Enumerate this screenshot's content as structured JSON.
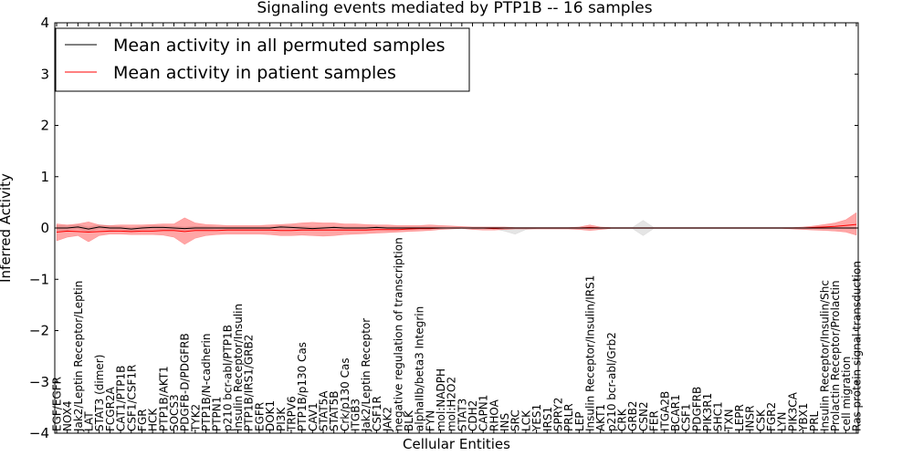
{
  "chart_data": {
    "type": "line",
    "title": "Signaling events mediated by PTP1B -- 16 samples",
    "xlabel": "Cellular Entities",
    "ylabel": "Inferred Activity",
    "ylim": [
      -4,
      4
    ],
    "yticks": [
      "4",
      "3",
      "2",
      "1",
      "0",
      "−1",
      "−2",
      "−3",
      "−4"
    ],
    "grid": false,
    "legend_position": "top-left",
    "categories": [
      "EGF/EGFR",
      "NOX4",
      "Jak2/Leptin Receptor/Leptin",
      "LAT",
      "STAT3 (dimer)",
      "FCGR2A",
      "CAT1/PTP1B",
      "CSF1/CSF1R",
      "FGR",
      "HCK",
      "PTP1B/AKT1",
      "SOCS3",
      "PDGFB-D/PDGFRB",
      "TYK2",
      "PTP1B/N-cadherin",
      "PTPN1",
      "p210 bcr-abl/PTP1B",
      "Insulin Receptor/Insulin",
      "PTP1B/IRS1/GRB2",
      "EGFR",
      "DOK1",
      "PI3K",
      "TRPV6",
      "PTP1B/p130 Cas",
      "CAV1",
      "STAT5A",
      "STAT5B",
      "Crk/p130 Cas",
      "ITGB3",
      "Jak2/Leptin Receptor",
      "CSF1R",
      "JAK2",
      "negative regulation of transcription",
      "BLK",
      "alphaIIb/beta3 Integrin",
      "FYN",
      "mol:NADPH",
      "mol:H2O2",
      "STAT3",
      "CDH2",
      "CAPN1",
      "RHOA",
      "INS",
      "SRC",
      "LCK",
      "YES1",
      "IRS1",
      "SPRY2",
      "PRLR",
      "LEP",
      "Insulin Receptor/Insulin/IRS1",
      "AKT1",
      "p210 bcr-abl/Grb2",
      "CRK",
      "GRB2",
      "CSN2",
      "FER",
      "ITGA2B",
      "BCAR1",
      "CSF1",
      "PDGFRB",
      "PIK3R1",
      "SHC1",
      "TXN",
      "LEPR",
      "INSR",
      "CSK",
      "FGR2",
      "LYN",
      "PIK3CA",
      "YBX1",
      "PRL",
      "Insulin Receptor/Insulin/Shc",
      "Prolactin Receptor/Prolactin",
      "cell migration",
      "Ras protein signal transduction"
    ],
    "series": [
      {
        "name": "Mean activity in all permuted samples",
        "color": "#000000",
        "values": [
          0.0,
          0.0,
          0.02,
          -0.02,
          0.02,
          0.0,
          0.0,
          -0.02,
          0.0,
          0.01,
          0.01,
          0.0,
          -0.01,
          0.0,
          0.0,
          0.0,
          0.0,
          0.0,
          0.0,
          0.0,
          0.0,
          0.02,
          0.01,
          0.0,
          -0.01,
          0.0,
          0.01,
          0.0,
          0.0,
          0.0,
          0.01,
          0.0,
          0.0,
          0.0,
          0.0,
          0.0,
          0.0,
          0.0,
          0.0,
          0.0,
          0.0,
          0.0,
          0.0,
          0.0,
          0.0,
          0.0,
          0.0,
          0.0,
          0.0,
          0.0,
          0.0,
          0.0,
          0.0,
          0.0,
          0.0,
          0.0,
          0.0,
          0.0,
          0.0,
          0.0,
          0.0,
          0.0,
          0.0,
          0.0,
          0.0,
          0.0,
          0.0,
          0.0,
          0.0,
          0.0,
          0.0,
          0.0,
          0.0,
          0.0,
          0.0,
          0.0
        ],
        "band_upper": [
          0.05,
          0.04,
          0.06,
          0.02,
          0.06,
          0.04,
          0.03,
          0.01,
          0.03,
          0.04,
          0.04,
          0.03,
          0.02,
          0.03,
          0.03,
          0.02,
          0.02,
          0.02,
          0.02,
          0.02,
          0.02,
          0.05,
          0.04,
          0.03,
          0.02,
          0.02,
          0.03,
          0.02,
          0.02,
          0.02,
          0.03,
          0.02,
          0.02,
          0.02,
          0.02,
          0.02,
          0.01,
          0.0,
          0.0,
          0.01,
          0.01,
          0.01,
          0.01,
          0.01,
          0.01,
          0.01,
          0.01,
          0.01,
          0.01,
          0.01,
          0.01,
          0.01,
          0.01,
          0.01,
          0.01,
          0.15,
          0.01,
          0.01,
          0.01,
          0.01,
          0.01,
          0.01,
          0.01,
          0.01,
          0.01,
          0.01,
          0.01,
          0.01,
          0.01,
          0.01,
          0.01,
          0.01,
          0.01,
          0.01,
          0.01,
          0.01
        ],
        "band_lower": [
          -0.05,
          -0.04,
          -0.02,
          -0.07,
          -0.02,
          -0.04,
          -0.03,
          -0.06,
          -0.03,
          -0.03,
          -0.03,
          -0.03,
          -0.04,
          -0.03,
          -0.03,
          -0.02,
          -0.02,
          -0.02,
          -0.02,
          -0.02,
          -0.02,
          -0.02,
          -0.02,
          -0.03,
          -0.04,
          -0.02,
          -0.02,
          -0.02,
          -0.02,
          -0.02,
          -0.02,
          -0.02,
          -0.02,
          -0.02,
          -0.02,
          -0.02,
          -0.01,
          0.0,
          0.0,
          -0.01,
          -0.01,
          -0.01,
          -0.06,
          -0.12,
          -0.03,
          -0.01,
          -0.01,
          -0.01,
          -0.01,
          -0.01,
          -0.01,
          -0.01,
          -0.01,
          -0.01,
          -0.01,
          -0.15,
          -0.01,
          -0.01,
          -0.01,
          -0.01,
          -0.01,
          -0.01,
          -0.01,
          -0.01,
          -0.01,
          -0.01,
          -0.01,
          -0.01,
          -0.01,
          -0.01,
          -0.01,
          -0.01,
          -0.01,
          -0.01,
          -0.01,
          -0.01
        ]
      },
      {
        "name": "Mean activity in patient samples",
        "color": "#ff0000",
        "values": [
          -0.08,
          -0.06,
          -0.07,
          -0.08,
          -0.07,
          -0.06,
          -0.06,
          -0.07,
          -0.06,
          -0.06,
          -0.05,
          -0.05,
          -0.07,
          -0.05,
          -0.05,
          -0.05,
          -0.04,
          -0.04,
          -0.04,
          -0.04,
          -0.04,
          -0.05,
          -0.05,
          -0.04,
          -0.04,
          -0.04,
          -0.04,
          -0.04,
          -0.04,
          -0.04,
          -0.03,
          -0.03,
          -0.03,
          -0.02,
          -0.01,
          -0.01,
          0.0,
          0.0,
          0.0,
          0.0,
          0.0,
          -0.01,
          0.0,
          0.0,
          0.0,
          0.0,
          0.0,
          0.0,
          0.0,
          0.0,
          0.01,
          0.0,
          0.0,
          0.0,
          0.0,
          0.0,
          0.0,
          0.0,
          0.0,
          0.0,
          0.0,
          0.0,
          0.0,
          0.0,
          0.0,
          0.0,
          0.0,
          0.0,
          0.0,
          0.0,
          0.0,
          0.01,
          0.02,
          0.03,
          0.05,
          0.07
        ],
        "band_upper": [
          0.08,
          0.06,
          0.08,
          0.12,
          0.06,
          0.05,
          0.06,
          0.06,
          0.06,
          0.07,
          0.08,
          0.08,
          0.2,
          0.1,
          0.07,
          0.06,
          0.05,
          0.05,
          0.05,
          0.05,
          0.06,
          0.07,
          0.08,
          0.1,
          0.11,
          0.1,
          0.1,
          0.08,
          0.08,
          0.07,
          0.06,
          0.06,
          0.05,
          0.05,
          0.05,
          0.06,
          0.05,
          0.04,
          0.03,
          0.02,
          0.02,
          0.02,
          0.02,
          0.01,
          0.01,
          0.01,
          0.01,
          0.01,
          0.01,
          0.02,
          0.06,
          0.02,
          0.01,
          0.01,
          0.01,
          0.01,
          0.01,
          0.01,
          0.01,
          0.01,
          0.01,
          0.01,
          0.01,
          0.01,
          0.01,
          0.01,
          0.01,
          0.01,
          0.01,
          0.01,
          0.02,
          0.04,
          0.07,
          0.1,
          0.16,
          0.3
        ],
        "band_lower": [
          -0.25,
          -0.18,
          -0.15,
          -0.27,
          -0.15,
          -0.12,
          -0.12,
          -0.13,
          -0.13,
          -0.13,
          -0.14,
          -0.18,
          -0.32,
          -0.2,
          -0.15,
          -0.13,
          -0.12,
          -0.12,
          -0.12,
          -0.12,
          -0.13,
          -0.15,
          -0.15,
          -0.14,
          -0.15,
          -0.16,
          -0.15,
          -0.13,
          -0.12,
          -0.11,
          -0.1,
          -0.09,
          -0.08,
          -0.07,
          -0.06,
          -0.05,
          -0.03,
          -0.02,
          -0.01,
          -0.03,
          -0.04,
          -0.04,
          -0.03,
          -0.02,
          -0.02,
          -0.02,
          -0.02,
          -0.02,
          -0.02,
          -0.03,
          -0.05,
          -0.03,
          -0.01,
          -0.01,
          -0.01,
          -0.01,
          -0.01,
          -0.01,
          -0.01,
          -0.01,
          -0.01,
          -0.01,
          -0.01,
          -0.01,
          -0.01,
          -0.01,
          -0.01,
          -0.01,
          -0.01,
          -0.02,
          -0.03,
          -0.04,
          -0.05,
          -0.06,
          -0.08,
          -0.14
        ]
      }
    ]
  }
}
